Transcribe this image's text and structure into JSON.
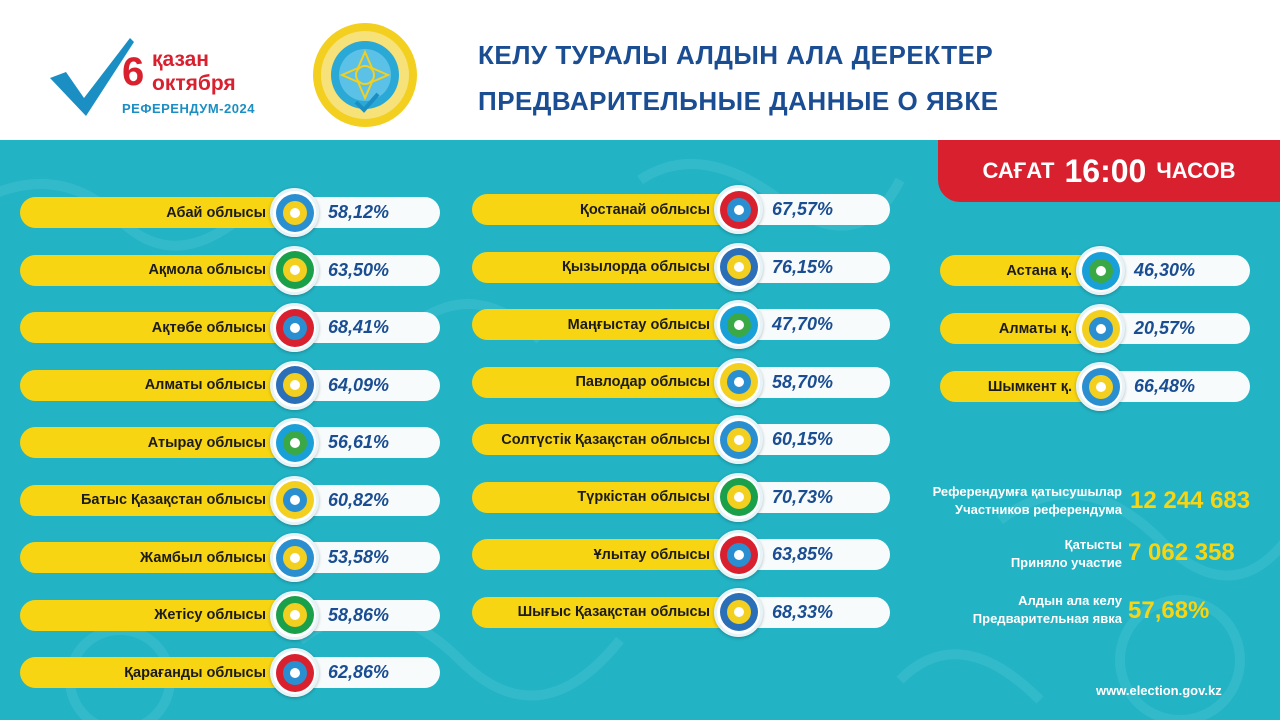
{
  "header": {
    "logo": {
      "day": "6",
      "month_kz": "қазан",
      "month_ru": "октября",
      "event": "РЕФЕРЕНДУМ-2024"
    },
    "title_kz": "КЕЛУ ТУРАЛЫ АЛДЫН АЛА ДЕРЕКТЕР",
    "title_ru": "ПРЕДВАРИТЕЛЬНЫЕ ДАННЫЕ О ЯВКЕ"
  },
  "time": {
    "kz": "САҒАТ",
    "value": "16:00",
    "ru": "ЧАСОВ"
  },
  "regions_left": [
    {
      "name": "Абай облысы",
      "pct": "58,12%",
      "icon": "abai-emblem-icon"
    },
    {
      "name": "Ақмола облысы",
      "pct": "63,50%",
      "icon": "aqmola-emblem-icon"
    },
    {
      "name": "Ақтөбе облысы",
      "pct": "68,41%",
      "icon": "aktobe-emblem-icon"
    },
    {
      "name": "Алматы облысы",
      "pct": "64,09%",
      "icon": "almaty-region-emblem-icon"
    },
    {
      "name": "Атырау  облысы",
      "pct": "56,61%",
      "icon": "atyrau-emblem-icon"
    },
    {
      "name": "Батыс Қазақстан  облысы",
      "pct": "60,82%",
      "icon": "west-kz-emblem-icon"
    },
    {
      "name": "Жамбыл облысы",
      "pct": "53,58%",
      "icon": "zhambyl-emblem-icon"
    },
    {
      "name": "Жетісу облысы",
      "pct": "58,86%",
      "icon": "zhetisu-emblem-icon"
    },
    {
      "name": "Қарағанды облысы",
      "pct": "62,86%",
      "icon": "karaganda-emblem-icon"
    }
  ],
  "regions_middle": [
    {
      "name": "Қостанай облысы",
      "pct": "67,57%",
      "icon": "kostanay-emblem-icon"
    },
    {
      "name": "Қызылорда облысы",
      "pct": "76,15%",
      "icon": "kyzylorda-emblem-icon"
    },
    {
      "name": "Маңғыстау облысы",
      "pct": "47,70%",
      "icon": "mangystau-emblem-icon"
    },
    {
      "name": "Павлодар облысы",
      "pct": "58,70%",
      "icon": "pavlodar-emblem-icon"
    },
    {
      "name": "Солтүстік Қазақстан облысы",
      "pct": "60,15%",
      "icon": "north-kz-emblem-icon"
    },
    {
      "name": "Түркістан облысы",
      "pct": "70,73%",
      "icon": "turkistan-emblem-icon"
    },
    {
      "name": "Ұлытау облысы",
      "pct": "63,85%",
      "icon": "ulytau-emblem-icon"
    },
    {
      "name": "Шығыс Қазақстан облысы",
      "pct": "68,33%",
      "icon": "east-kz-emblem-icon"
    }
  ],
  "cities": [
    {
      "name": "Астана  қ.",
      "pct": "46,30%",
      "icon": "astana-emblem-icon"
    },
    {
      "name": "Алматы  қ.",
      "pct": "20,57%",
      "icon": "almaty-city-emblem-icon"
    },
    {
      "name": "Шымкент қ.",
      "pct": "66,48%",
      "icon": "shymkent-emblem-icon"
    }
  ],
  "summary": {
    "participants_kz": "Референдумға қатысушылар",
    "participants_ru": "Участников референдума",
    "participants_value": "12 244 683",
    "voted_kz": "Қатысты",
    "voted_ru": "Приняло участие",
    "voted_value": "7 062 358",
    "turnout_kz": "Алдын ала келу",
    "turnout_ru": "Предварительная явка",
    "turnout_value": "57,68%"
  },
  "footer_url": "www.election.gov.kz",
  "colors": {
    "teal": "#22b3c4",
    "yellow": "#f7d512",
    "red": "#d8202f",
    "navy": "#1a4d92"
  }
}
